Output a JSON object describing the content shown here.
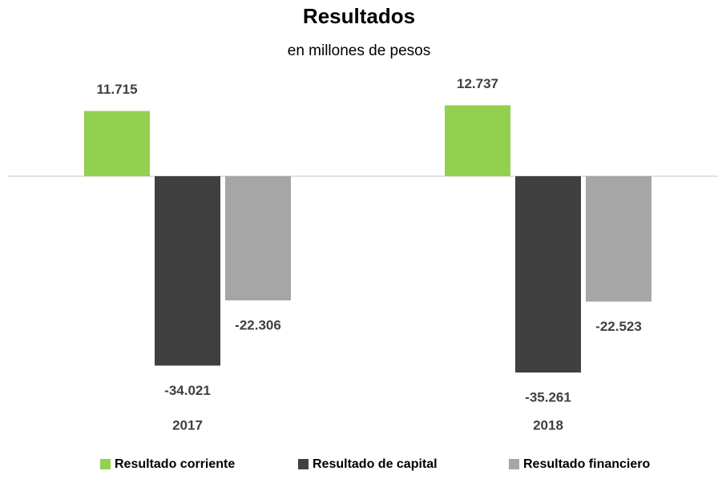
{
  "chart_data": {
    "type": "bar",
    "title": "Resultados",
    "subtitle": "en millones de pesos",
    "categories": [
      "2017",
      "2018"
    ],
    "series": [
      {
        "name": "Resultado corriente",
        "color": "#92d050",
        "values": [
          11715,
          12737
        ],
        "value_labels": [
          "11.715",
          "12.737"
        ]
      },
      {
        "name": "Resultado de capital",
        "color": "#404040",
        "values": [
          -34021,
          -35261
        ],
        "value_labels": [
          "-34.021",
          "-35.261"
        ]
      },
      {
        "name": "Resultado financiero",
        "color": "#a6a6a6",
        "values": [
          -22306,
          -22523
        ],
        "value_labels": [
          "-22.306",
          "-22.523"
        ]
      }
    ],
    "ylim": [
      -40000,
      20000
    ],
    "legend": "bottom"
  }
}
